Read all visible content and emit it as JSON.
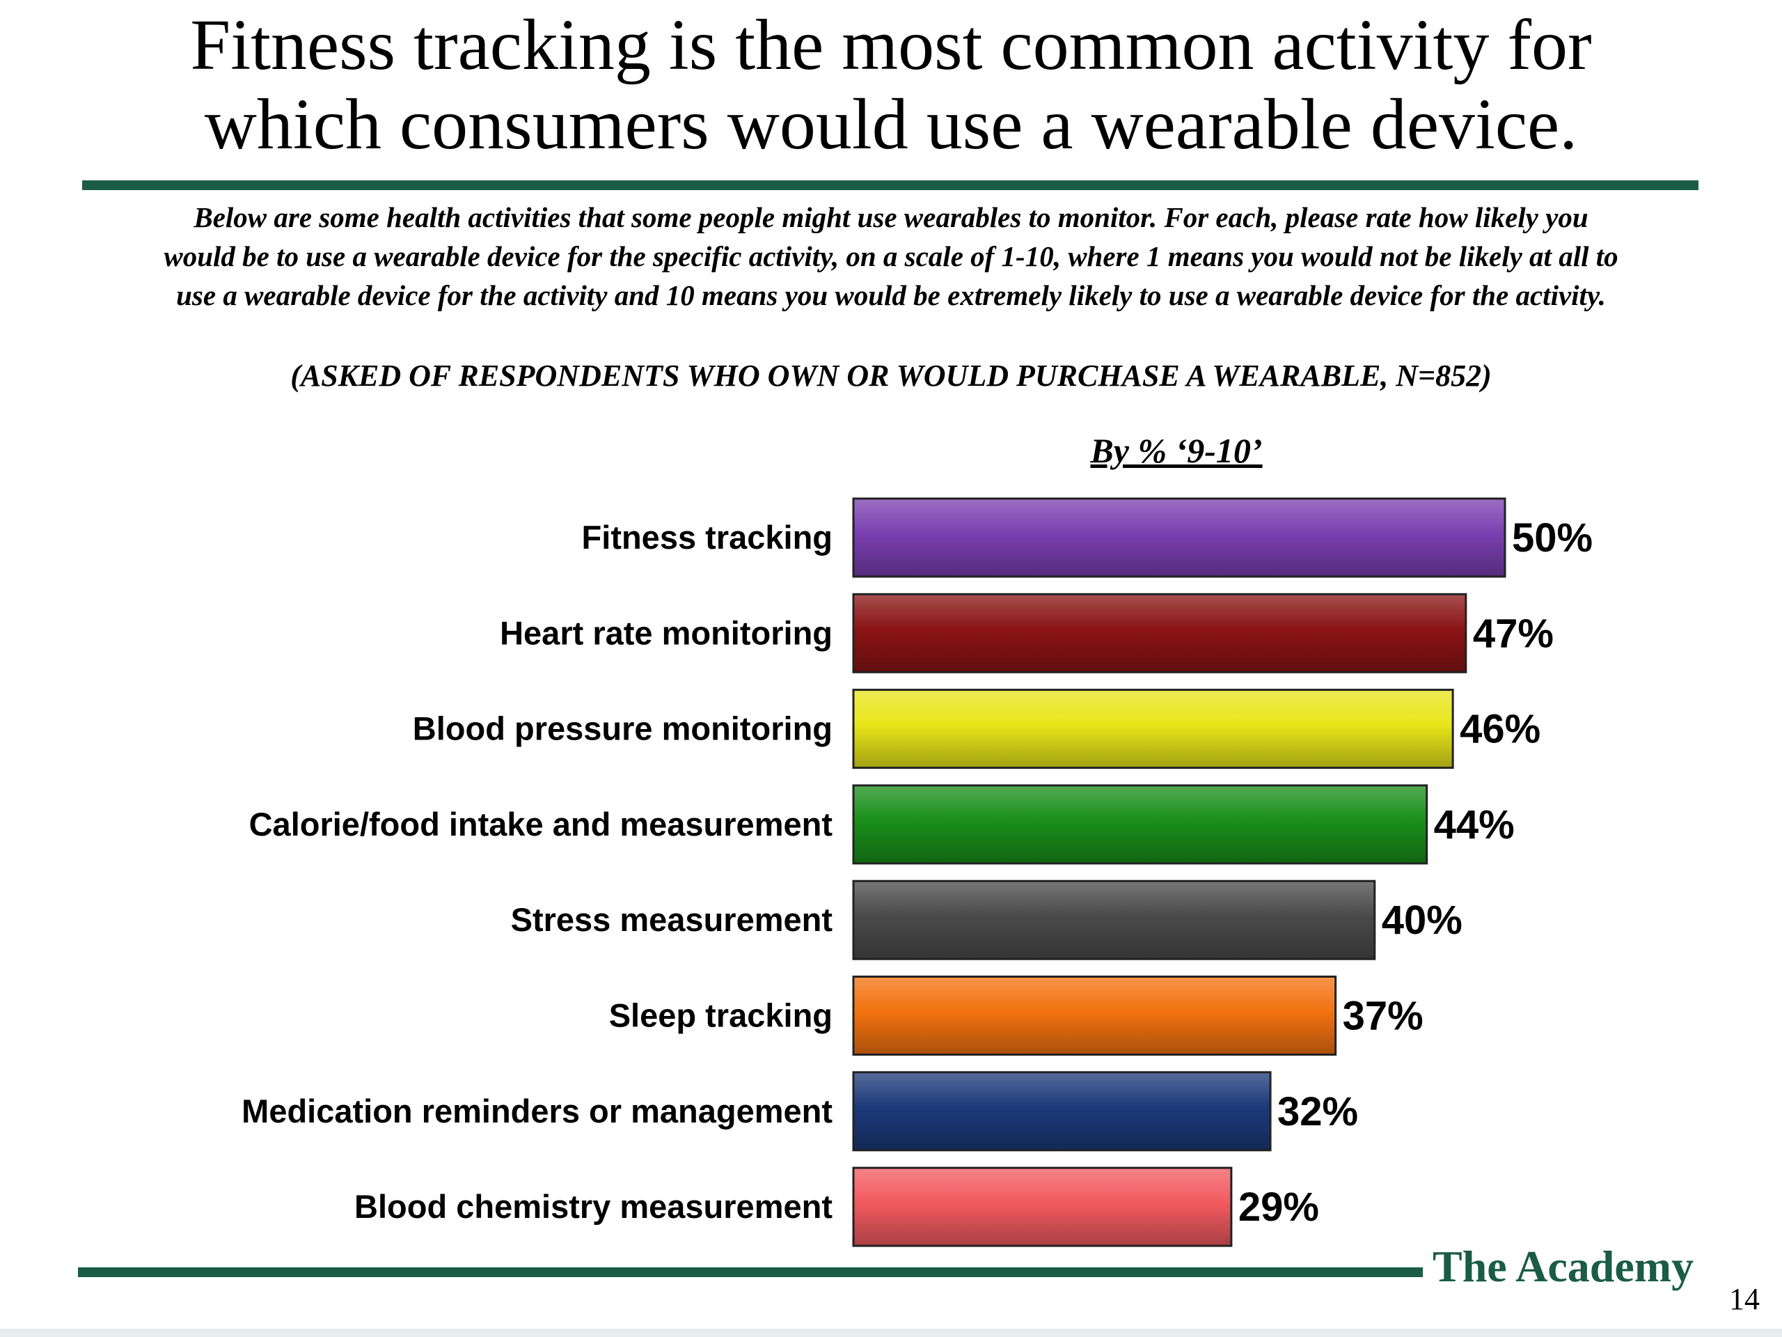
{
  "slide": {
    "title_line1": "Fitness tracking is the most common activity for",
    "title_line2": "which consumers would use a wearable device.",
    "question_line1": "Below are some health activities that some people might use wearables to monitor. For each, please rate how likely you",
    "question_line2": "would be to use a wearable device for the specific activity, on a scale of 1-10, where 1 means you would not be likely at all to",
    "question_line3": "use a wearable device for the activity and 10 means you would be extremely likely to use a wearable device for the activity.",
    "asked_note": "(ASKED OF RESPONDENTS WHO OWN OR WOULD PURCHASE A WEARABLE, N=852)",
    "by_label": "By % ‘9-10’",
    "brand": "The Academy",
    "page_number": "14"
  },
  "chart_data": {
    "type": "bar",
    "orientation": "horizontal",
    "categories": [
      "Fitness tracking",
      "Heart rate monitoring",
      "Blood pressure monitoring",
      "Calorie/food intake and measurement",
      "Stress measurement",
      "Sleep tracking",
      "Medication reminders or management",
      "Blood chemistry measurement"
    ],
    "values": [
      50,
      47,
      46,
      44,
      40,
      37,
      32,
      29
    ],
    "value_labels": [
      "50%",
      "47%",
      "46%",
      "44%",
      "40%",
      "37%",
      "32%",
      "29%"
    ],
    "colors": [
      "#7a3fb0",
      "#8b1414",
      "#e8e61a",
      "#1a8f1a",
      "#4a4a4a",
      "#f2720f",
      "#1c3a7a",
      "#f25a5f"
    ],
    "title": "",
    "xlabel": "",
    "ylabel": "",
    "xlim": [
      0,
      50
    ],
    "grid": false,
    "legend": "none"
  }
}
